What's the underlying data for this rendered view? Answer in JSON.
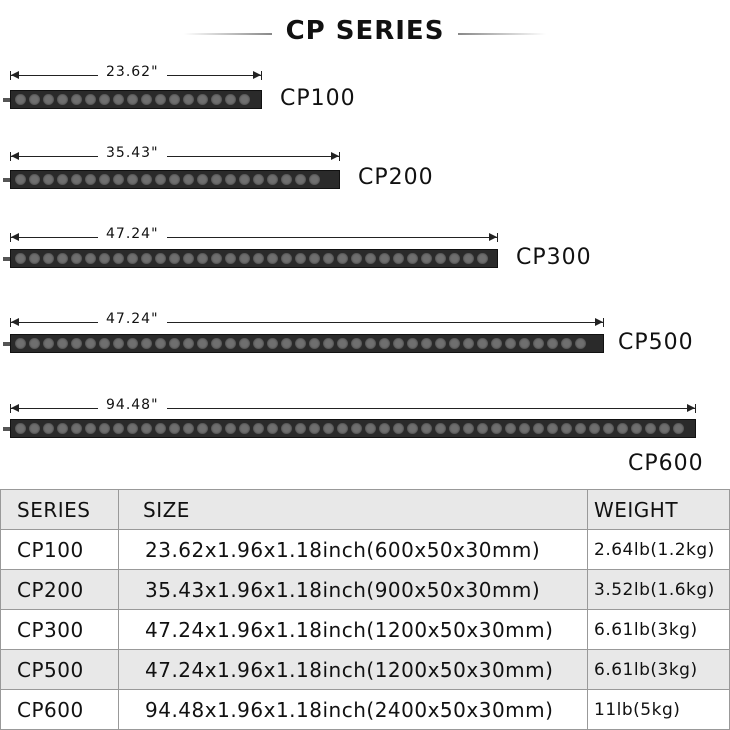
{
  "title": "CP SERIES",
  "products": [
    {
      "name": "CP100",
      "length": "23.62\""
    },
    {
      "name": "CP200",
      "length": "35.43\""
    },
    {
      "name": "CP300",
      "length": "47.24\""
    },
    {
      "name": "CP500",
      "length": "47.24\""
    },
    {
      "name": "CP600",
      "length": "94.48\""
    }
  ],
  "table": {
    "headers": [
      "SERIES",
      "SIZE",
      "WEIGHT"
    ],
    "rows": [
      [
        "CP100",
        "23.62x1.96x1.18inch(600x50x30mm)",
        "2.64lb(1.2kg)"
      ],
      [
        "CP200",
        "35.43x1.96x1.18inch(900x50x30mm)",
        "3.52lb(1.6kg)"
      ],
      [
        "CP300",
        "47.24x1.96x1.18inch(1200x50x30mm)",
        "6.61lb(3kg)"
      ],
      [
        "CP500",
        "47.24x1.96x1.18inch(1200x50x30mm)",
        "6.61lb(3kg)"
      ],
      [
        "CP600",
        "94.48x1.96x1.18inch(2400x50x30mm)",
        "11lb(5kg)"
      ]
    ]
  }
}
